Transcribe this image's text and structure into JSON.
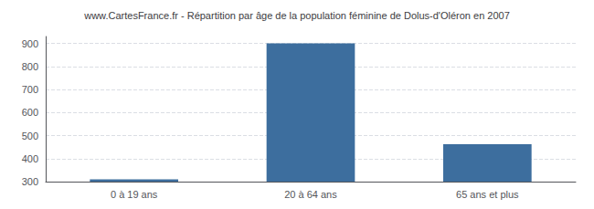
{
  "chart_data": {
    "type": "bar",
    "title": "www.CartesFrance.fr - Répartition par âge de la population féminine de Dolus-d'Oléron en 2007",
    "categories": [
      "0 à 19 ans",
      "20 à 64 ans",
      "65 ans et plus"
    ],
    "values": [
      310,
      900,
      462
    ],
    "color": "#3d6e9e",
    "ylim": [
      300,
      930
    ],
    "yticks": [
      300,
      400,
      500,
      600,
      700,
      800,
      900
    ],
    "grid": true
  }
}
